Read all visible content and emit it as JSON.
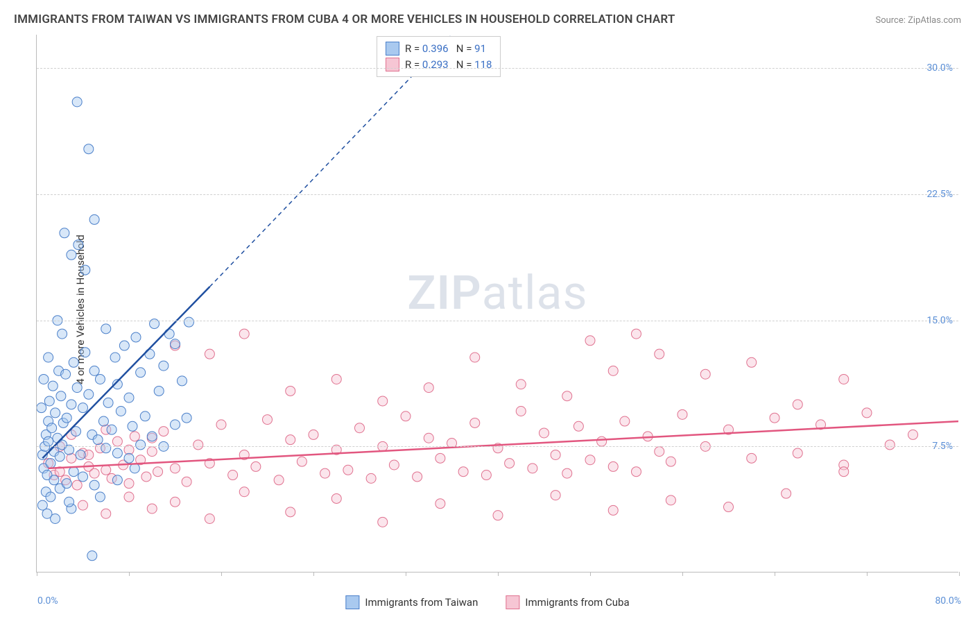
{
  "title": "IMMIGRANTS FROM TAIWAN VS IMMIGRANTS FROM CUBA 4 OR MORE VEHICLES IN HOUSEHOLD CORRELATION CHART",
  "source": "Source: ZipAtlas.com",
  "ylabel": "4 or more Vehicles in Household",
  "watermark_bold": "ZIP",
  "watermark_rest": "atlas",
  "chart": {
    "type": "scatter",
    "xlim": [
      0,
      80
    ],
    "ylim": [
      0,
      32
    ],
    "x_min_label": "0.0%",
    "x_max_label": "80.0%",
    "y_ticks": [
      7.5,
      15.0,
      22.5,
      30.0
    ],
    "y_tick_labels": [
      "7.5%",
      "15.0%",
      "22.5%",
      "30.0%"
    ],
    "x_tick_positions": [
      0,
      8,
      16,
      24,
      32,
      40,
      48,
      56,
      64,
      72,
      80
    ],
    "grid_color": "#d0d0d0",
    "axis_color": "#bbbbbb",
    "background_color": "#ffffff",
    "tick_label_color": "#5b8fd6",
    "marker_radius": 7,
    "marker_opacity": 0.45,
    "series": [
      {
        "name": "Immigrants from Taiwan",
        "fill_color": "#a9c9ef",
        "stroke_color": "#4a7fc9",
        "trend_line_color": "#1f4fa0",
        "trend_line_dashed_color": "#1f4fa0",
        "R_label": "R =",
        "R_value": "0.396",
        "N_label": "N =",
        "N_value": "91",
        "trend_solid": {
          "x1": 0.5,
          "y1": 6.8,
          "x2": 15,
          "y2": 17.0
        },
        "trend_dashed": {
          "x1": 15,
          "y1": 17.0,
          "x2": 36,
          "y2": 32
        },
        "points": [
          [
            0.5,
            7.0
          ],
          [
            0.6,
            6.2
          ],
          [
            0.7,
            7.5
          ],
          [
            0.8,
            8.2
          ],
          [
            0.9,
            5.8
          ],
          [
            1.0,
            9.0
          ],
          [
            1.0,
            7.8
          ],
          [
            1.1,
            10.2
          ],
          [
            1.2,
            6.5
          ],
          [
            1.3,
            8.6
          ],
          [
            1.4,
            11.1
          ],
          [
            1.5,
            7.2
          ],
          [
            1.6,
            9.5
          ],
          [
            1.8,
            8.0
          ],
          [
            1.9,
            12.0
          ],
          [
            2.0,
            6.9
          ],
          [
            2.1,
            10.5
          ],
          [
            2.2,
            7.6
          ],
          [
            2.3,
            8.9
          ],
          [
            2.5,
            11.8
          ],
          [
            2.6,
            9.2
          ],
          [
            2.8,
            7.3
          ],
          [
            3.0,
            10.0
          ],
          [
            3.2,
            12.5
          ],
          [
            3.4,
            8.4
          ],
          [
            3.5,
            11.0
          ],
          [
            3.8,
            7.0
          ],
          [
            4.0,
            9.8
          ],
          [
            4.2,
            13.1
          ],
          [
            4.5,
            10.6
          ],
          [
            4.8,
            8.2
          ],
          [
            5.0,
            12.0
          ],
          [
            5.3,
            7.9
          ],
          [
            5.5,
            11.5
          ],
          [
            5.8,
            9.0
          ],
          [
            6.0,
            14.5
          ],
          [
            6.2,
            10.1
          ],
          [
            6.5,
            8.5
          ],
          [
            6.8,
            12.8
          ],
          [
            7.0,
            11.2
          ],
          [
            7.3,
            9.6
          ],
          [
            7.6,
            13.5
          ],
          [
            8.0,
            10.4
          ],
          [
            8.3,
            8.7
          ],
          [
            8.6,
            14.0
          ],
          [
            9.0,
            11.9
          ],
          [
            9.4,
            9.3
          ],
          [
            9.8,
            13.0
          ],
          [
            10.2,
            14.8
          ],
          [
            10.6,
            10.8
          ],
          [
            11.0,
            12.3
          ],
          [
            11.5,
            14.2
          ],
          [
            12.0,
            13.6
          ],
          [
            12.6,
            11.4
          ],
          [
            13.2,
            14.9
          ],
          [
            2.4,
            20.2
          ],
          [
            3.0,
            18.9
          ],
          [
            3.6,
            19.5
          ],
          [
            4.2,
            18.0
          ],
          [
            1.5,
            5.5
          ],
          [
            2.0,
            5.0
          ],
          [
            2.6,
            5.3
          ],
          [
            0.8,
            4.8
          ],
          [
            1.2,
            4.5
          ],
          [
            3.2,
            6.0
          ],
          [
            4.0,
            5.7
          ],
          [
            5.0,
            5.2
          ],
          [
            3.5,
            28.0
          ],
          [
            4.5,
            25.2
          ],
          [
            5.0,
            21.0
          ],
          [
            1.8,
            15.0
          ],
          [
            2.2,
            14.2
          ],
          [
            1.0,
            12.8
          ],
          [
            0.6,
            11.5
          ],
          [
            0.4,
            9.8
          ],
          [
            6.0,
            7.4
          ],
          [
            7.0,
            7.1
          ],
          [
            8.0,
            6.8
          ],
          [
            9.0,
            7.6
          ],
          [
            10.0,
            8.1
          ],
          [
            11.0,
            7.5
          ],
          [
            12.0,
            8.8
          ],
          [
            13.0,
            9.2
          ],
          [
            4.8,
            1.0
          ],
          [
            3.0,
            3.8
          ],
          [
            1.6,
            3.2
          ],
          [
            0.9,
            3.5
          ],
          [
            0.5,
            4.0
          ],
          [
            2.8,
            4.2
          ],
          [
            5.5,
            4.5
          ],
          [
            7.0,
            5.5
          ],
          [
            8.5,
            6.2
          ]
        ]
      },
      {
        "name": "Immigrants from Cuba",
        "fill_color": "#f6c6d4",
        "stroke_color": "#e0718f",
        "trend_line_color": "#e2567f",
        "R_label": "R =",
        "R_value": "0.293",
        "N_label": "N =",
        "N_value": "118",
        "trend_solid": {
          "x1": 1,
          "y1": 6.2,
          "x2": 80,
          "y2": 9.0
        },
        "points": [
          [
            1.0,
            6.5
          ],
          [
            1.5,
            5.8
          ],
          [
            2.0,
            6.0
          ],
          [
            2.5,
            5.5
          ],
          [
            3.0,
            6.8
          ],
          [
            3.5,
            5.2
          ],
          [
            4.0,
            7.1
          ],
          [
            4.5,
            6.3
          ],
          [
            5.0,
            5.9
          ],
          [
            5.5,
            7.4
          ],
          [
            6.0,
            6.1
          ],
          [
            6.5,
            5.6
          ],
          [
            7.0,
            7.8
          ],
          [
            7.5,
            6.4
          ],
          [
            8.0,
            5.3
          ],
          [
            8.5,
            8.1
          ],
          [
            9.0,
            6.7
          ],
          [
            9.5,
            5.7
          ],
          [
            10.0,
            7.2
          ],
          [
            10.5,
            6.0
          ],
          [
            11.0,
            8.4
          ],
          [
            12.0,
            6.2
          ],
          [
            13.0,
            5.4
          ],
          [
            14.0,
            7.6
          ],
          [
            15.0,
            6.5
          ],
          [
            16.0,
            8.8
          ],
          [
            17.0,
            5.8
          ],
          [
            18.0,
            7.0
          ],
          [
            19.0,
            6.3
          ],
          [
            20.0,
            9.1
          ],
          [
            21.0,
            5.5
          ],
          [
            22.0,
            7.9
          ],
          [
            23.0,
            6.6
          ],
          [
            24.0,
            8.2
          ],
          [
            25.0,
            5.9
          ],
          [
            26.0,
            7.3
          ],
          [
            27.0,
            6.1
          ],
          [
            28.0,
            8.6
          ],
          [
            29.0,
            5.6
          ],
          [
            30.0,
            7.5
          ],
          [
            31.0,
            6.4
          ],
          [
            32.0,
            9.3
          ],
          [
            33.0,
            5.7
          ],
          [
            34.0,
            8.0
          ],
          [
            35.0,
            6.8
          ],
          [
            36.0,
            7.7
          ],
          [
            37.0,
            6.0
          ],
          [
            38.0,
            8.9
          ],
          [
            39.0,
            5.8
          ],
          [
            40.0,
            7.4
          ],
          [
            41.0,
            6.5
          ],
          [
            42.0,
            9.6
          ],
          [
            43.0,
            6.2
          ],
          [
            44.0,
            8.3
          ],
          [
            45.0,
            7.0
          ],
          [
            46.0,
            5.9
          ],
          [
            47.0,
            8.7
          ],
          [
            48.0,
            6.7
          ],
          [
            49.0,
            7.8
          ],
          [
            50.0,
            6.3
          ],
          [
            51.0,
            9.0
          ],
          [
            52.0,
            6.0
          ],
          [
            53.0,
            8.1
          ],
          [
            54.0,
            7.2
          ],
          [
            55.0,
            6.6
          ],
          [
            56.0,
            9.4
          ],
          [
            58.0,
            7.5
          ],
          [
            60.0,
            8.5
          ],
          [
            62.0,
            6.8
          ],
          [
            64.0,
            9.2
          ],
          [
            66.0,
            7.1
          ],
          [
            68.0,
            8.8
          ],
          [
            70.0,
            6.4
          ],
          [
            72.0,
            9.5
          ],
          [
            74.0,
            7.6
          ],
          [
            76.0,
            8.2
          ],
          [
            12.0,
            13.5
          ],
          [
            15.0,
            13.0
          ],
          [
            18.0,
            14.2
          ],
          [
            22.0,
            10.8
          ],
          [
            26.0,
            11.5
          ],
          [
            30.0,
            10.2
          ],
          [
            34.0,
            11.0
          ],
          [
            38.0,
            12.8
          ],
          [
            42.0,
            11.2
          ],
          [
            46.0,
            10.5
          ],
          [
            50.0,
            12.0
          ],
          [
            54.0,
            13.0
          ],
          [
            58.0,
            11.8
          ],
          [
            62.0,
            12.5
          ],
          [
            66.0,
            10.0
          ],
          [
            70.0,
            11.5
          ],
          [
            4.0,
            4.0
          ],
          [
            6.0,
            3.5
          ],
          [
            8.0,
            4.5
          ],
          [
            10.0,
            3.8
          ],
          [
            12.0,
            4.2
          ],
          [
            15.0,
            3.2
          ],
          [
            18.0,
            4.8
          ],
          [
            22.0,
            3.6
          ],
          [
            26.0,
            4.4
          ],
          [
            30.0,
            3.0
          ],
          [
            35.0,
            4.1
          ],
          [
            40.0,
            3.4
          ],
          [
            45.0,
            4.6
          ],
          [
            50.0,
            3.7
          ],
          [
            55.0,
            4.3
          ],
          [
            60.0,
            3.9
          ],
          [
            65.0,
            4.7
          ],
          [
            70.0,
            6.0
          ],
          [
            2.0,
            7.5
          ],
          [
            3.0,
            8.2
          ],
          [
            4.5,
            7.0
          ],
          [
            6.0,
            8.5
          ],
          [
            8.0,
            7.3
          ],
          [
            10.0,
            8.0
          ],
          [
            48.0,
            13.8
          ],
          [
            52.0,
            14.2
          ]
        ]
      }
    ]
  },
  "legend_bottom": [
    {
      "label": "Immigrants from Taiwan",
      "fill": "#a9c9ef",
      "stroke": "#4a7fc9"
    },
    {
      "label": "Immigrants from Cuba",
      "fill": "#f6c6d4",
      "stroke": "#e0718f"
    }
  ]
}
